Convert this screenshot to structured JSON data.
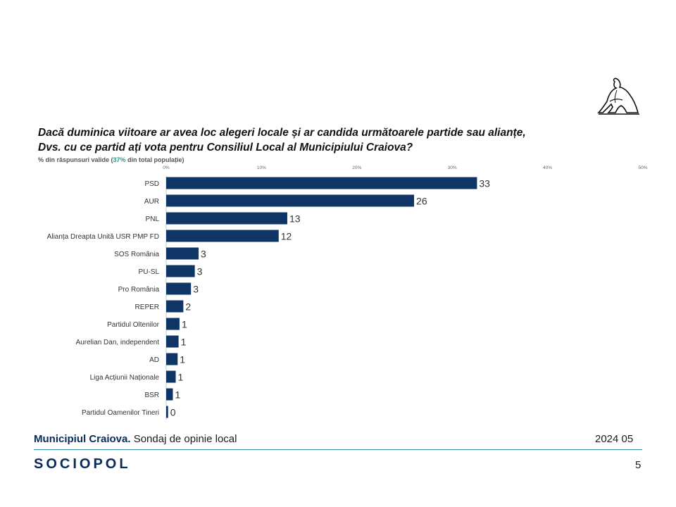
{
  "question": {
    "line1": "Dacă duminica viitoare ar avea loc alegeri locale și ar candida următoarele partide sau alianțe,",
    "line2": "Dvs. cu ce partid ați vota pentru Consiliul Local al Municipiului Craiova?"
  },
  "subnote": {
    "prefix": "% din răspunsuri valide (",
    "highlight": "37%",
    "suffix": " din total populație)"
  },
  "chart_data": {
    "type": "bar",
    "orientation": "horizontal",
    "title": "Dacă duminica viitoare ar avea loc alegeri locale și ar candida următoarele partide sau alianțe, Dvs. cu ce partid ați vota pentru Consiliul Local al Municipiului Craiova?",
    "xlim": [
      0,
      50
    ],
    "xticks": [
      "0%",
      "10%",
      "20%",
      "30%",
      "40%",
      "50%"
    ],
    "categories": [
      "PSD",
      "AUR",
      "PNL",
      "Alianța Dreapta Unită USR PMP FD",
      "SOS România",
      "PU-SL",
      "Pro România",
      "REPER",
      "Partidul Oltenilor",
      "Aurelian Dan, independent",
      "AD",
      "Liga Acțiunii Naționale",
      "BSR",
      "Partidul Oamenilor Tineri"
    ],
    "values": [
      33,
      26,
      13,
      12,
      3,
      3,
      3,
      2,
      1,
      1,
      1,
      1,
      1,
      0
    ],
    "display_values": [
      33,
      26,
      13,
      12,
      3,
      3,
      3,
      2,
      1,
      1,
      1,
      1,
      1,
      0
    ],
    "exact_values": [
      32.6,
      26.0,
      12.7,
      11.8,
      3.4,
      3.0,
      2.6,
      1.8,
      1.4,
      1.3,
      1.2,
      1.0,
      0.7,
      0.2
    ],
    "bar_color": "#0f3466"
  },
  "footer": {
    "title_bold": "Municipiul Craiova.",
    "title_rest": " Sondaj de opinie local",
    "date": "2024 05",
    "brand": "SOCIOPOL",
    "page": "5"
  }
}
